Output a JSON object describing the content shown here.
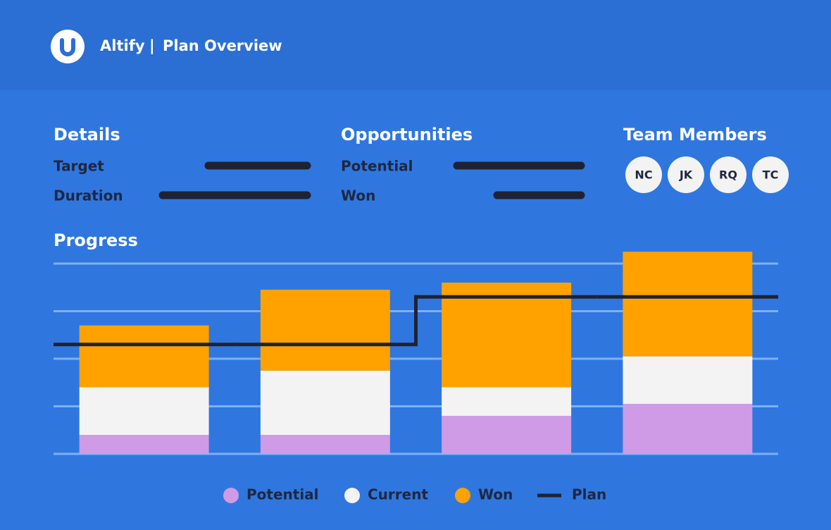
{
  "header": {
    "brand": "Altify",
    "separator": "|",
    "title": "Plan Overview"
  },
  "details": {
    "title": "Details",
    "fields": [
      "Target",
      "Duration"
    ]
  },
  "opportunities": {
    "title": "Opportunities",
    "fields": [
      "Potential",
      "Won"
    ]
  },
  "team": {
    "title": "Team Members",
    "members": [
      "NC",
      "JK",
      "RQ",
      "TC"
    ]
  },
  "chart_data": {
    "type": "bar",
    "stacked": true,
    "title": "Progress",
    "categories": [
      null,
      null,
      null,
      null
    ],
    "series": [
      {
        "name": "Potential",
        "color": "#cf9be6",
        "values": [
          0.4,
          0.4,
          0.8,
          1.05
        ]
      },
      {
        "name": "Current",
        "color": "#f3f3f3",
        "values": [
          1.0,
          1.35,
          0.6,
          1.0
        ]
      },
      {
        "name": "Won",
        "color": "#ffa200",
        "values": [
          1.3,
          1.7,
          2.2,
          2.2
        ]
      },
      {
        "name": "Plan",
        "type": "step",
        "color": "#1e2233",
        "values": [
          2.3,
          2.3,
          3.3,
          3.3
        ]
      }
    ],
    "ylim": [
      0,
      4
    ],
    "yticks": [
      0,
      1,
      2,
      3,
      4
    ],
    "grid": true
  }
}
